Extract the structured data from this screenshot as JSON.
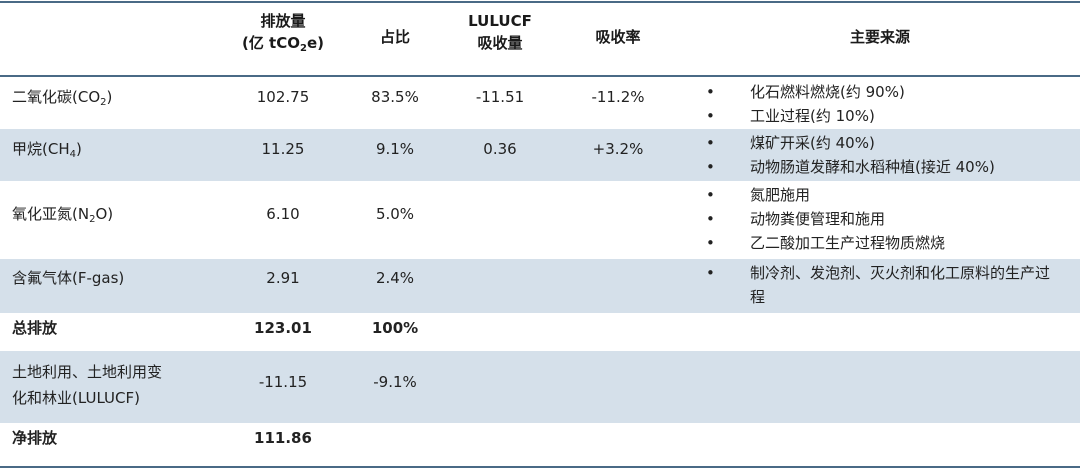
{
  "headers": {
    "emissions_line1": "排放量",
    "emissions_line2_pre": "(亿 tCO",
    "emissions_line2_sub": "2",
    "emissions_line2_post": "e)",
    "share": "占比",
    "lulucf_line1": "LULUCF",
    "lulucf_line2": "吸收量",
    "absorb_rate": "吸收率",
    "main_sources": "主要来源"
  },
  "rows": [
    {
      "name_pre": "二氧化碳(CO",
      "name_sub": "2",
      "name_post": ")",
      "emissions": "102.75",
      "share": "83.5%",
      "lulucf": "-11.51",
      "rate": "-11.2%",
      "sources": [
        "化石燃料燃烧(约 90%)",
        "工业过程(约 10%)"
      ]
    },
    {
      "name_pre": "甲烷(CH",
      "name_sub": "4",
      "name_post": ")",
      "emissions": "11.25",
      "share": "9.1%",
      "lulucf": "0.36",
      "rate": "+3.2%",
      "sources": [
        "煤矿开采(约 40%)",
        "动物肠道发酵和水稻种植(接近 40%)"
      ]
    },
    {
      "name_pre": "氧化亚氮(N",
      "name_sub": "2",
      "name_post": "O)",
      "emissions": "6.10",
      "share": "5.0%",
      "lulucf": "",
      "rate": "",
      "sources": [
        "氮肥施用",
        "动物粪便管理和施用",
        "乙二酸加工生产过程物质燃烧"
      ]
    },
    {
      "name": "含氟气体(F-gas)",
      "emissions": "2.91",
      "share": "2.4%",
      "lulucf": "",
      "rate": "",
      "sources": [
        "制冷剂、发泡剂、灭火剂和化工原料的生产过程"
      ]
    },
    {
      "name": "总排放",
      "emissions": "123.01",
      "share": "100%"
    },
    {
      "name_line1": "土地利用、土地利用变",
      "name_line2": "化和林业(LULUCF)",
      "emissions": "-11.15",
      "share": "-9.1%"
    },
    {
      "name": "净排放",
      "emissions": "111.86"
    }
  ],
  "colors": {
    "rule": "#4a6a86",
    "band": "#d5e0ea"
  }
}
